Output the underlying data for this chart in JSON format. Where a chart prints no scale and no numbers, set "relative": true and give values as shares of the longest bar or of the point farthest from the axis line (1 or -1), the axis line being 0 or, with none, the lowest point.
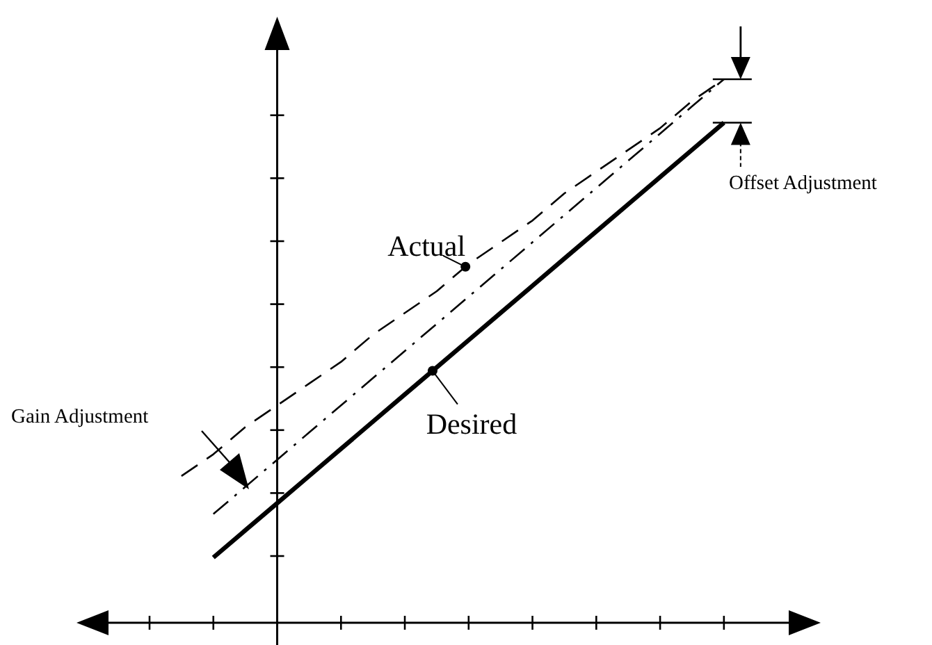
{
  "chart_data": {
    "type": "line",
    "relative": true,
    "marker": "none",
    "categories": [
      null,
      null,
      null,
      null,
      null,
      null,
      null,
      null,
      null,
      null,
      null,
      null,
      null,
      null,
      null,
      null,
      null,
      null,
      null
    ],
    "series": [
      {
        "name": "Actual",
        "color": "#000000",
        "line_style": "dashed",
        "values": [
          null,
          0.27,
          0.31,
          0.36,
          0.4,
          0.44,
          0.48,
          0.53,
          0.57,
          0.61,
          0.66,
          0.7,
          0.74,
          0.79,
          0.83,
          0.87,
          0.91,
          0.96,
          1.0
        ]
      },
      {
        "color": "#000000",
        "line_style": "dashdot",
        "values": [
          null,
          null,
          0.2,
          0.25,
          0.3,
          0.35,
          0.4,
          0.45,
          0.5,
          0.55,
          0.6,
          0.65,
          0.7,
          0.75,
          0.8,
          0.85,
          0.9,
          0.95,
          1.0
        ]
      },
      {
        "name": "Desired",
        "color": "#000000",
        "line_style": "solid",
        "values": [
          null,
          null,
          0.12,
          0.17,
          0.22,
          0.27,
          0.32,
          0.37,
          0.42,
          0.47,
          0.52,
          0.57,
          0.62,
          0.67,
          0.72,
          0.77,
          0.82,
          0.87,
          0.92
        ]
      }
    ],
    "annotations": [
      "Gain Adjustment",
      "Offset Adjustment"
    ]
  }
}
